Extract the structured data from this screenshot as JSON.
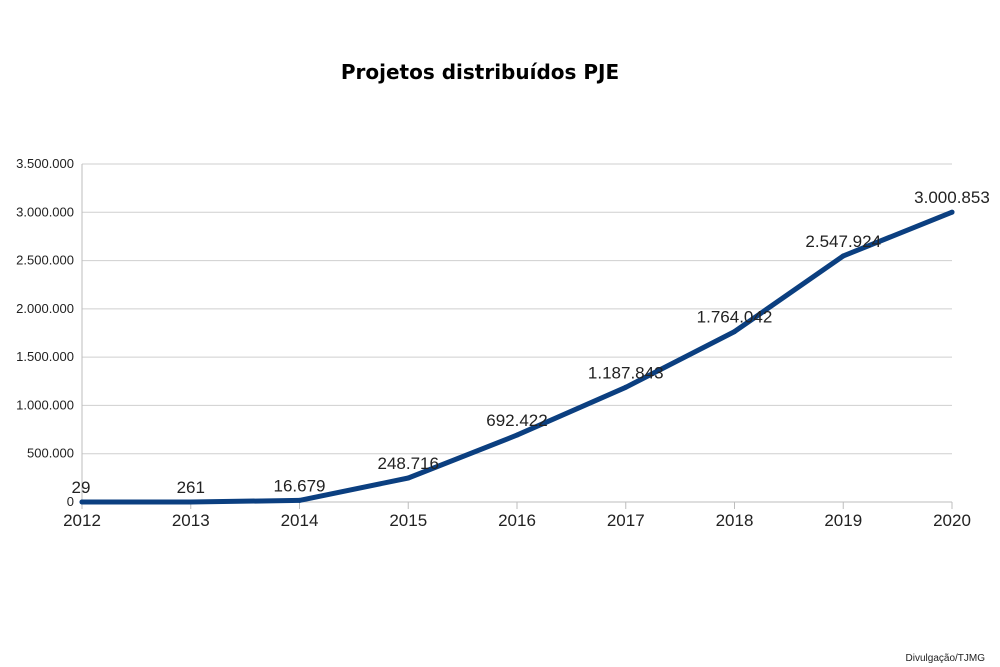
{
  "chart_data": {
    "type": "line",
    "title": "Projetos distribuídos PJE",
    "x": [
      "2012",
      "2013",
      "2014",
      "2015",
      "2016",
      "2017",
      "2018",
      "2019",
      "2020"
    ],
    "series": [
      {
        "values": [
          29,
          261,
          16679,
          248716,
          692422,
          1187843,
          1764042,
          2547924,
          3000853
        ],
        "labels": [
          "29",
          "261",
          "16.679",
          "248.716",
          "692.422",
          "1.187.843",
          "1.764.042",
          "2.547.924",
          "3.000.853"
        ]
      }
    ],
    "ylim": [
      0,
      3500000
    ],
    "yticks": [
      0,
      500000,
      1000000,
      1500000,
      2000000,
      2500000,
      3000000,
      3500000
    ],
    "ytick_labels": [
      "0",
      "500.000",
      "1.000.000",
      "1.500.000",
      "2.000.000",
      "2.500.000",
      "3.000.000",
      "3.500.000"
    ],
    "grid": true,
    "line_color": "#0b3f80"
  },
  "credit": "Divulgação/TJMG"
}
